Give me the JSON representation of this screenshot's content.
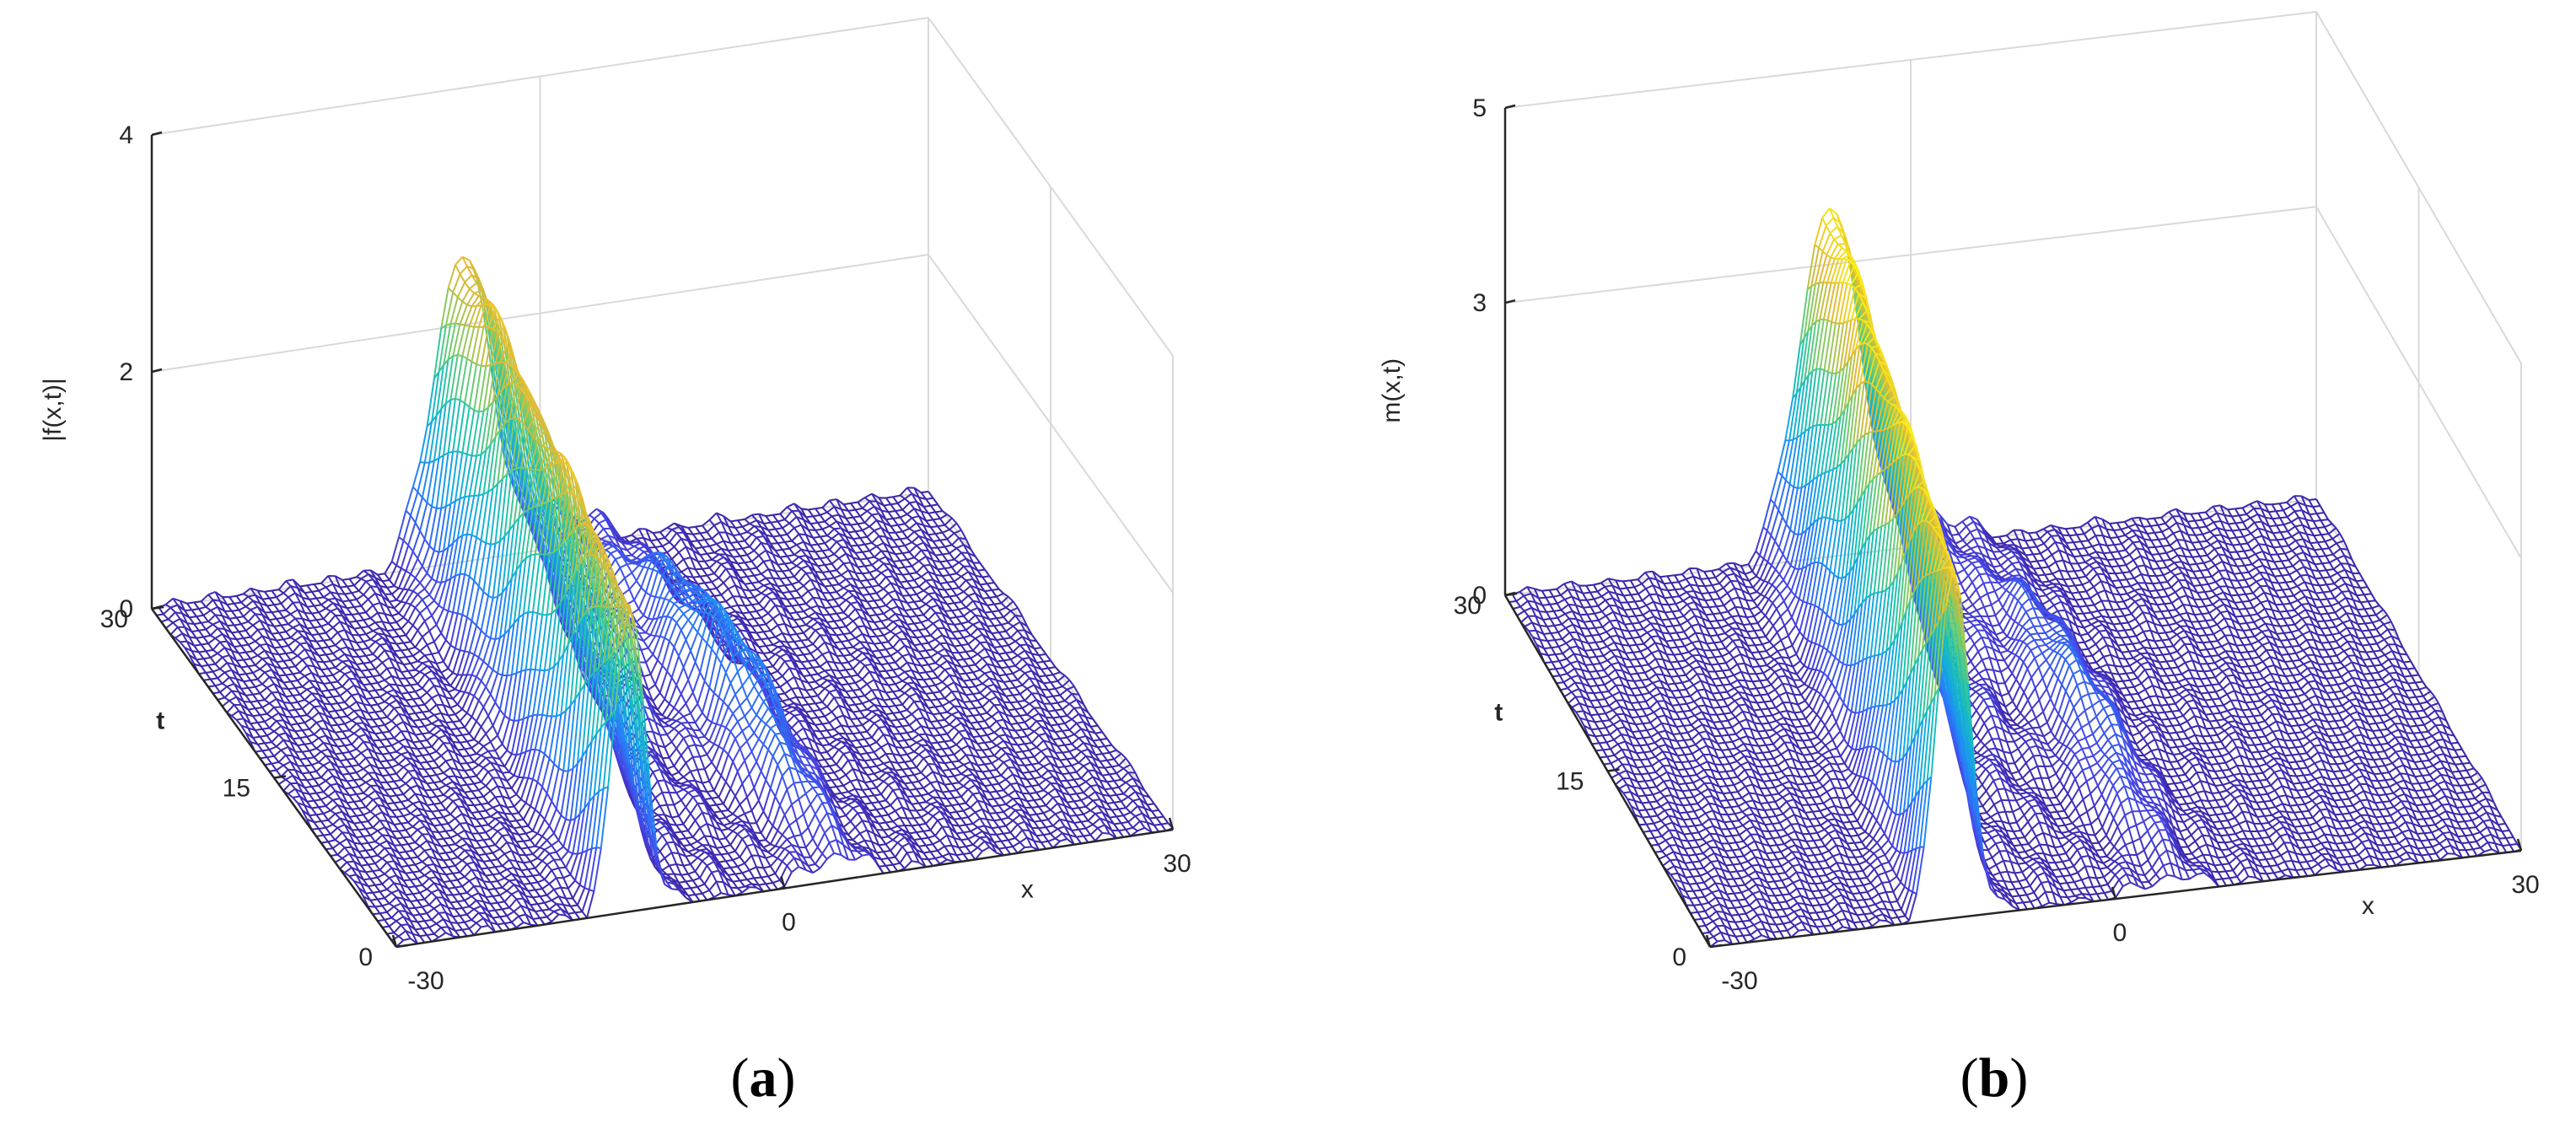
{
  "chart_data": [
    {
      "type": "surface",
      "panel_label": "a",
      "zlabel": "|f(x,t)|",
      "xlabel": "x",
      "ylabel": "t",
      "x_ticks": [
        "-30",
        "0",
        "30"
      ],
      "t_ticks": [
        "0",
        "15",
        "30"
      ],
      "z_ticks": [
        "0",
        "2",
        "4"
      ],
      "xlim": [
        -30,
        30
      ],
      "tlim": [
        0,
        30
      ],
      "zlim": [
        0,
        4
      ],
      "grid": "on",
      "colormap": "parula",
      "peak_height": 2.6,
      "peak_x_at_t0": -12,
      "peak_x_at_t30": -6,
      "side_peak_height": 0.9,
      "side_peak_x": 4
    },
    {
      "type": "surface",
      "panel_label": "b",
      "zlabel": "m(x,t)",
      "xlabel": "x",
      "ylabel": "t",
      "x_ticks": [
        "-30",
        "0",
        "30"
      ],
      "t_ticks": [
        "0",
        "15",
        "30"
      ],
      "z_ticks": [
        "0",
        "3",
        "5"
      ],
      "xlim": [
        -30,
        30
      ],
      "tlim": [
        0,
        30
      ],
      "zlim": [
        0,
        5
      ],
      "grid": "on",
      "colormap": "parula",
      "peak_height": 3.6,
      "peak_x_at_t0": -12,
      "peak_x_at_t30": -6,
      "side_peak_height": 0.7,
      "side_peak_x": 4
    }
  ]
}
